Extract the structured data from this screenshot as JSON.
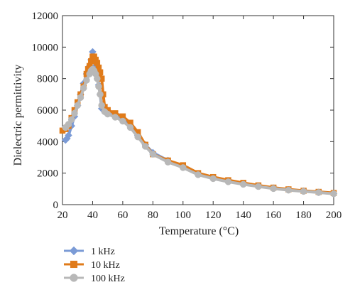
{
  "chart_data": {
    "type": "scatter",
    "xlabel": "Temperature (°C)",
    "ylabel": "Dielectric permittivity",
    "xlim": [
      20,
      200
    ],
    "ylim": [
      0,
      12000
    ],
    "x_ticks": [
      20,
      40,
      60,
      80,
      100,
      120,
      140,
      160,
      180,
      200
    ],
    "y_ticks": [
      0,
      2000,
      4000,
      6000,
      8000,
      10000,
      12000
    ],
    "grid": false,
    "legend_position": "below plot, left",
    "series": [
      {
        "name": "1 kHz",
        "color": "#7b9bd6",
        "marker": "diamond",
        "x": [
          22,
          23,
          24,
          26,
          28,
          30,
          32,
          34,
          36,
          38,
          39,
          40,
          41,
          42,
          43,
          44,
          45,
          46,
          48,
          50,
          55,
          60,
          65,
          70,
          75,
          80,
          90,
          100,
          110,
          120,
          130,
          140,
          150,
          160,
          170,
          180,
          190,
          200
        ],
        "y": [
          4100,
          4200,
          4400,
          5000,
          5600,
          6300,
          7000,
          7700,
          8300,
          8800,
          9200,
          9700,
          9300,
          8800,
          8200,
          7600,
          7000,
          6100,
          5900,
          5800,
          5600,
          5400,
          5000,
          4400,
          3800,
          3300,
          2800,
          2400,
          1950,
          1700,
          1500,
          1320,
          1180,
          1050,
          940,
          860,
          780,
          700
        ]
      },
      {
        "name": "10 kHz",
        "color": "#e07b1a",
        "marker": "square",
        "x": [
          20,
          22,
          24,
          26,
          28,
          30,
          32,
          34,
          36,
          37,
          38,
          39,
          40,
          41,
          42,
          43,
          44,
          45,
          46,
          47,
          48,
          50,
          55,
          60,
          65,
          70,
          75,
          80,
          90,
          100,
          110,
          120,
          130,
          140,
          150,
          160,
          170,
          180,
          190,
          200
        ],
        "y": [
          4700,
          4800,
          5000,
          5500,
          6000,
          6500,
          7000,
          7500,
          8300,
          8600,
          8800,
          9100,
          9400,
          9400,
          9200,
          9000,
          8700,
          8400,
          8000,
          7000,
          6200,
          6000,
          5800,
          5600,
          5200,
          4600,
          3800,
          3200,
          2800,
          2500,
          2000,
          1750,
          1550,
          1380,
          1220,
          1080,
          970,
          880,
          810,
          740
        ]
      },
      {
        "name": "100 kHz",
        "color": "#b8b8b8",
        "marker": "circle",
        "x": [
          22,
          24,
          26,
          28,
          30,
          32,
          34,
          36,
          38,
          39,
          40,
          41,
          42,
          43,
          44,
          45,
          46,
          48,
          50,
          55,
          60,
          65,
          70,
          75,
          80,
          90,
          100,
          110,
          120,
          130,
          140,
          150,
          160,
          170,
          180,
          190,
          200
        ],
        "y": [
          4900,
          5100,
          5400,
          5800,
          6300,
          6800,
          7400,
          7900,
          8300,
          8500,
          8600,
          8500,
          8300,
          8000,
          7500,
          7000,
          6300,
          5900,
          5750,
          5550,
          5300,
          4900,
          4300,
          3700,
          3200,
          2700,
          2350,
          1900,
          1650,
          1450,
          1290,
          1150,
          1020,
          920,
          840,
          770,
          690
        ]
      }
    ]
  }
}
